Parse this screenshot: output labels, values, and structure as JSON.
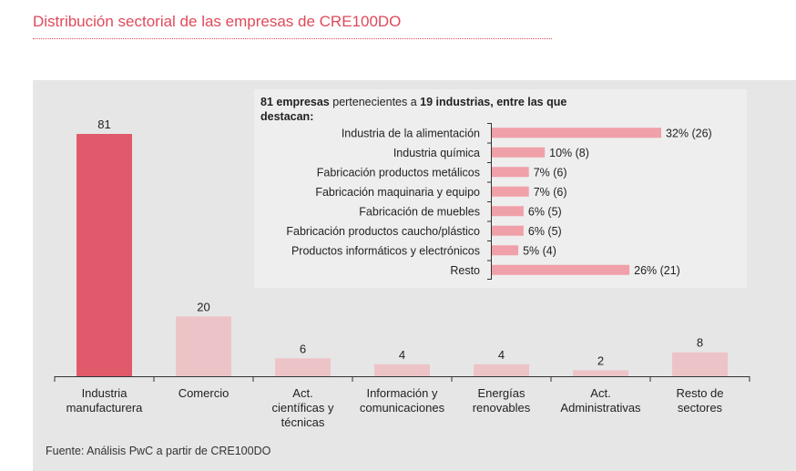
{
  "title": "Distribución sectorial de las empresas de CRE100DO",
  "source": "Fuente: Análisis PwC a partir de CRE100DO",
  "colors": {
    "title": "#e0495a",
    "main_bar_highlight": "#e05a6b",
    "main_bar": "#ecc4c7",
    "inset_bar": "#f0a0a8",
    "panel_bg": "#e6e6e6",
    "inset_bg": "#eeeeee"
  },
  "chart_data": [
    {
      "type": "bar",
      "title": "",
      "categories": [
        [
          "Industria",
          "manufacturera"
        ],
        [
          "Comercio"
        ],
        [
          "Act.",
          "científicas y",
          "técnicas"
        ],
        [
          "Información  y",
          "comunicaciones"
        ],
        [
          "Energías",
          "renovables"
        ],
        [
          "Act.",
          "Administrativas"
        ],
        [
          "Resto de",
          "sectores"
        ]
      ],
      "values": [
        81,
        20,
        6,
        4,
        4,
        2,
        8
      ],
      "data_labels": [
        "81",
        "20",
        "6",
        "4",
        "4",
        "2",
        "8"
      ],
      "highlight_index": 0,
      "xlabel": "",
      "ylabel": "",
      "ylim": [
        0,
        81
      ]
    },
    {
      "type": "bar",
      "orientation": "horizontal",
      "title_bold_1": "81 empresas",
      "title_normal_1": " pertenecientes a ",
      "title_bold_2": "19 industrias, entre las que",
      "title_line_2": "destacan:",
      "categories": [
        "Industria de la alimentación",
        "Industria química",
        "Fabricación  productos  metálicos",
        "Fabricación  maquinaria  y equipo",
        "Fabricación  de muebles",
        "Fabricación productos caucho/plástico",
        "Productos  informáticos  y electrónicos",
        "Resto"
      ],
      "values": [
        32,
        10,
        7,
        7,
        6,
        6,
        5,
        26
      ],
      "data_labels": [
        "32% (26)",
        "10%  (8)",
        "7% (6)",
        "7% (6)",
        "6% (5)",
        "6% (5)",
        "5%  (4)",
        "26% (21)"
      ],
      "xlim": [
        0,
        32
      ]
    }
  ]
}
